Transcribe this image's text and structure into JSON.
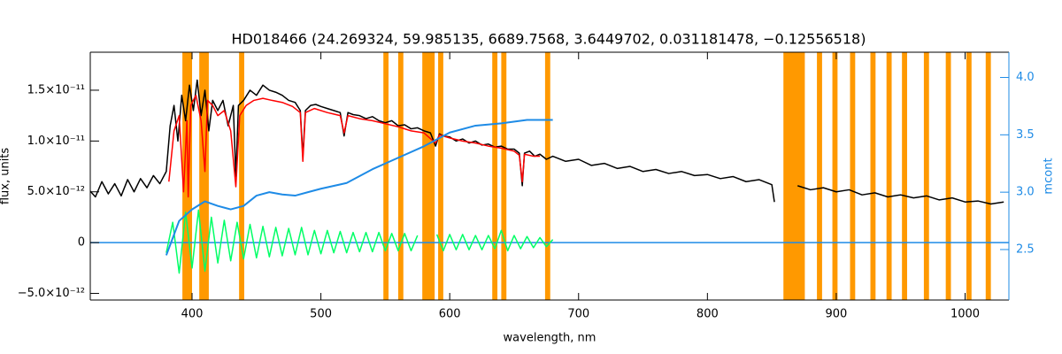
{
  "chart_data": {
    "type": "line",
    "title": "HD018466   (24.269324, 59.985135, 6689.7568, 3.6449702, 0.031181478, −0.12556518)",
    "xlabel": "wavelength, nm",
    "ylabel": "flux, units",
    "y2label": "mcont",
    "xlim": [
      321,
      1034
    ],
    "ylim": [
      -5.65e-12,
      1.874e-11
    ],
    "y2lim": [
      2.06,
      4.22
    ],
    "y2color": "#1e8be6",
    "xticks": [
      400,
      500,
      600,
      700,
      800,
      900,
      1000
    ],
    "yticks": [
      {
        "value": -5e-12,
        "label": "−5.0×10⁻¹²"
      },
      0,
      {
        "value": 5e-12,
        "label": "5.0×10⁻¹²"
      },
      {
        "value": 1e-11,
        "label": "1.0×10⁻¹¹"
      },
      {
        "value": 1.5e-11,
        "label": "1.5×10⁻¹¹"
      }
    ],
    "y2ticks": [
      2.5,
      {
        "value": 3,
        "label": "3.0"
      },
      3.5,
      {
        "value": 4,
        "label": "4.0"
      }
    ],
    "masks": {
      "color": "#ff9900",
      "ranges": [
        [
          392.5,
          396.5
        ],
        [
          396,
          400
        ],
        [
          405.6,
          409.6
        ],
        [
          409,
          413
        ],
        [
          436.5,
          440.5
        ],
        [
          548.5,
          552.5
        ],
        [
          560,
          564
        ],
        [
          578.7,
          588.3
        ],
        [
          591,
          595
        ],
        [
          633,
          637
        ],
        [
          640,
          644
        ],
        [
          674,
          678
        ],
        [
          859,
          875.6
        ],
        [
          885,
          889
        ],
        [
          897,
          901
        ],
        [
          910.7,
          914.7
        ],
        [
          926.5,
          930.5
        ],
        [
          939,
          943
        ],
        [
          951,
          955
        ],
        [
          968,
          972
        ],
        [
          985,
          989
        ],
        [
          1001,
          1005
        ],
        [
          1016,
          1020
        ]
      ]
    },
    "series": [
      {
        "color": "#000000",
        "x": [
          320,
          325,
          330,
          335,
          340,
          345,
          350,
          355,
          360,
          365,
          370,
          375,
          380,
          383,
          386,
          389,
          392,
          395,
          398,
          401,
          404,
          407,
          410,
          413,
          416,
          420,
          424,
          428,
          432,
          434,
          436,
          440,
          445,
          450,
          455,
          460,
          465,
          470,
          475,
          480,
          484,
          486,
          488,
          492,
          496,
          500,
          505,
          510,
          515,
          518,
          521,
          525,
          530,
          535,
          540,
          545,
          550,
          555,
          560,
          565,
          570,
          575,
          580,
          585,
          589,
          592,
          595,
          600,
          605,
          610,
          615,
          620,
          625,
          630,
          635,
          640,
          645,
          650,
          654,
          656.3,
          658,
          662,
          666,
          670,
          675,
          680,
          690,
          700,
          710,
          720,
          730,
          740,
          750,
          760,
          770,
          780,
          790,
          800,
          810,
          820,
          830,
          840,
          850,
          852,
          860,
          870,
          880,
          890,
          900,
          910,
          920,
          930,
          940,
          950,
          960,
          970,
          980,
          990,
          1000,
          1010,
          1020,
          1030
        ],
        "values": [
          5.2e-12,
          4.5e-12,
          6e-12,
          4.8e-12,
          5.8e-12,
          4.6e-12,
          6.2e-12,
          5e-12,
          6.3e-12,
          5.4e-12,
          6.6e-12,
          5.8e-12,
          7e-12,
          1.15e-11,
          1.35e-11,
          1e-11,
          1.45e-11,
          1.2e-11,
          1.55e-11,
          1.3e-11,
          1.6e-11,
          1.25e-11,
          1.5e-11,
          1.1e-11,
          1.4e-11,
          1.3e-11,
          1.4e-11,
          1.15e-11,
          1.35e-11,
          6.5e-12,
          1.35e-11,
          1.4e-11,
          1.5e-11,
          1.45e-11,
          1.55e-11,
          1.5e-11,
          1.48e-11,
          1.45e-11,
          1.4e-11,
          1.38e-11,
          1.3e-11,
          8.5e-12,
          1.3e-11,
          1.35e-11,
          1.36e-11,
          1.34e-11,
          1.32e-11,
          1.3e-11,
          1.28e-11,
          1.05e-11,
          1.28e-11,
          1.26e-11,
          1.25e-11,
          1.22e-11,
          1.24e-11,
          1.2e-11,
          1.18e-11,
          1.2e-11,
          1.15e-11,
          1.16e-11,
          1.12e-11,
          1.13e-11,
          1.1e-11,
          1.08e-11,
          9.5e-12,
          1.07e-11,
          1.05e-11,
          1.04e-11,
          1e-11,
          1.02e-11,
          9.8e-12,
          1e-11,
          9.6e-12,
          9.7e-12,
          9.4e-12,
          9.5e-12,
          9.2e-12,
          9.2e-12,
          8.8e-12,
          5.6e-12,
          8.8e-12,
          9e-12,
          8.5e-12,
          8.7e-12,
          8.2e-12,
          8.5e-12,
          8e-12,
          8.2e-12,
          7.6e-12,
          7.8e-12,
          7.3e-12,
          7.5e-12,
          7e-12,
          7.2e-12,
          6.8e-12,
          7e-12,
          6.6e-12,
          6.7e-12,
          6.3e-12,
          6.5e-12,
          6e-12,
          6.2e-12,
          5.7e-12,
          4e-12,
          null,
          5.6e-12,
          5.2e-12,
          5.4e-12,
          5e-12,
          5.2e-12,
          4.7e-12,
          4.9e-12,
          4.5e-12,
          4.7e-12,
          4.4e-12,
          4.6e-12,
          4.2e-12,
          4.4e-12,
          4e-12,
          4.1e-12,
          3.8e-12,
          4e-12
        ]
      },
      {
        "color": "#ff0000",
        "x": [
          382,
          386,
          390,
          393.4,
          396,
          397,
          399,
          403,
          407,
          410,
          412,
          416,
          420,
          425,
          430,
          434,
          437,
          442,
          448,
          455,
          462,
          470,
          478,
          484,
          486,
          488,
          495,
          505,
          515,
          518,
          521,
          530,
          540,
          550,
          560,
          570,
          580,
          589,
          592,
          600,
          610,
          620,
          630,
          640,
          650,
          654,
          656.3,
          658,
          665,
          670
        ],
        "values": [
          6e-12,
          1.1e-11,
          1.25e-11,
          5e-12,
          1.2e-11,
          4.5e-12,
          1.35e-11,
          1.45e-11,
          1.2e-11,
          7e-12,
          1.4e-11,
          1.35e-11,
          1.25e-11,
          1.3e-11,
          1.1e-11,
          5.5e-12,
          1.25e-11,
          1.35e-11,
          1.4e-11,
          1.42e-11,
          1.4e-11,
          1.38e-11,
          1.34e-11,
          1.28e-11,
          8e-12,
          1.28e-11,
          1.32e-11,
          1.28e-11,
          1.25e-11,
          1.08e-11,
          1.25e-11,
          1.22e-11,
          1.2e-11,
          1.17e-11,
          1.14e-11,
          1.1e-11,
          1.08e-11,
          9.8e-12,
          1.06e-11,
          1.03e-11,
          1e-11,
          9.8e-12,
          9.5e-12,
          9.3e-12,
          9e-12,
          8.6e-12,
          6e-12,
          8.7e-12,
          8.5e-12,
          8.5e-12
        ]
      },
      {
        "color": "#00ff66",
        "x": [
          380,
          385,
          390,
          395,
          400,
          405,
          410,
          415,
          420,
          425,
          430,
          435,
          440,
          445,
          450,
          455,
          460,
          465,
          470,
          475,
          480,
          485,
          490,
          495,
          500,
          505,
          510,
          515,
          520,
          525,
          530,
          535,
          540,
          545,
          550,
          555,
          560,
          565,
          570,
          575,
          580,
          585,
          590,
          595,
          600,
          605,
          610,
          615,
          620,
          625,
          630,
          635,
          640,
          645,
          650,
          655,
          660,
          665,
          670,
          675,
          680
        ],
        "values": [
          -1e-12,
          2e-12,
          -3e-12,
          3e-12,
          -2.5e-12,
          3.2e-12,
          -2.8e-12,
          2.5e-12,
          -2e-12,
          2.2e-12,
          -1.8e-12,
          2e-12,
          -1.6e-12,
          1.8e-12,
          -1.5e-12,
          1.6e-12,
          -1.4e-12,
          1.5e-12,
          -1.3e-12,
          1.4e-12,
          -1.2e-12,
          1.5e-12,
          -1.2e-12,
          1.2e-12,
          -1.1e-12,
          1.2e-12,
          -1e-12,
          1.1e-12,
          -1e-12,
          1e-12,
          -9e-13,
          1e-12,
          -9e-13,
          1e-12,
          -8e-13,
          9e-13,
          -8e-13,
          9e-13,
          -8e-13,
          7e-13,
          null,
          null,
          8e-13,
          -8e-13,
          8e-13,
          -7e-13,
          8e-13,
          -7e-13,
          7e-13,
          -7e-13,
          7e-13,
          -6e-13,
          1.2e-12,
          -8e-13,
          7e-13,
          -6e-13,
          6e-13,
          -5e-13,
          5e-13,
          -4e-13,
          3e-13
        ]
      },
      {
        "color": "#1e8be6",
        "axis": "y2",
        "x": [
          380,
          385,
          390,
          400,
          410,
          420,
          430,
          440,
          450,
          460,
          470,
          480,
          490,
          500,
          520,
          540,
          560,
          580,
          600,
          620,
          640,
          660,
          680
        ],
        "values": [
          2.45,
          2.6,
          2.75,
          2.85,
          2.92,
          2.88,
          2.85,
          2.88,
          2.97,
          3.0,
          2.98,
          2.97,
          3.0,
          3.03,
          3.08,
          3.2,
          3.3,
          3.4,
          3.52,
          3.58,
          3.6,
          3.63,
          3.63
        ]
      }
    ]
  }
}
